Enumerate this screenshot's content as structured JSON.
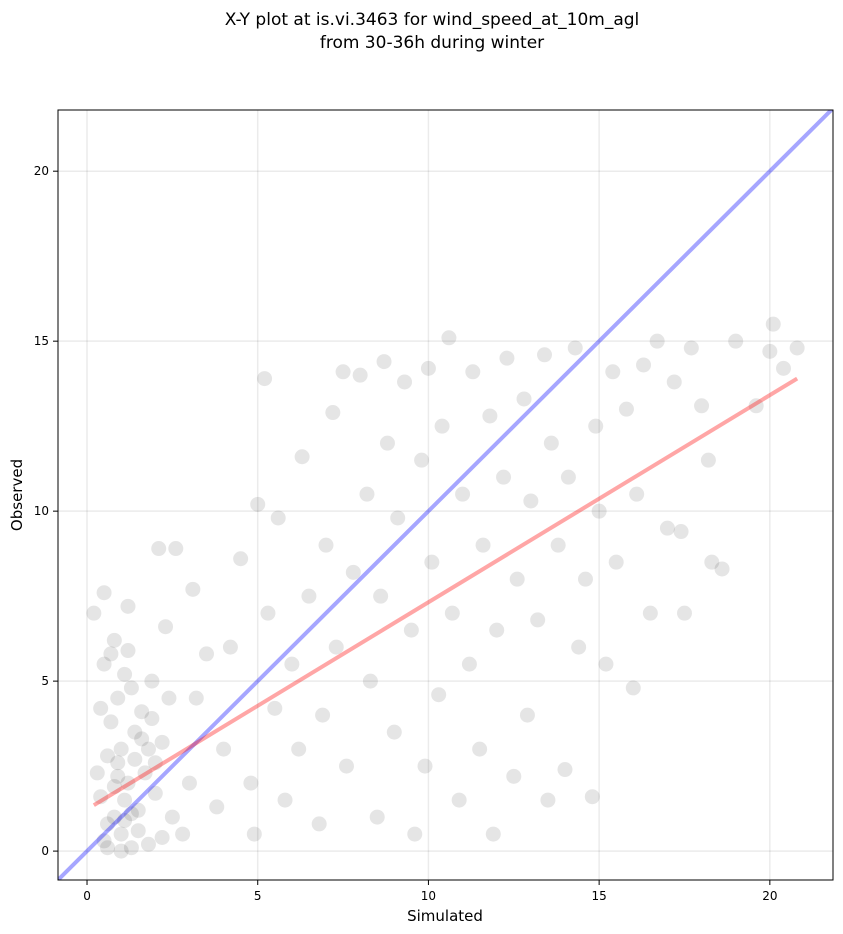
{
  "chart_data": {
    "type": "scatter",
    "title": [
      "X-Y plot at is.vi.3463 for wind_speed_at_10m_agl",
      "from 30-36h during winter"
    ],
    "xlabel": "Simulated",
    "ylabel": "Observed",
    "xlim": [
      -0.85,
      21.85
    ],
    "ylim": [
      -0.85,
      21.8
    ],
    "xticks": [
      0,
      5,
      10,
      15,
      20
    ],
    "yticks": [
      0,
      5,
      10,
      15,
      20
    ],
    "grid": true,
    "series": [
      {
        "type": "scatter",
        "color": "#000000",
        "opacity": 0.1,
        "x": [
          0.5,
          0.8,
          1.0,
          1.2,
          0.6,
          1.4,
          0.9,
          1.1,
          0.7,
          1.5,
          1.8,
          2.0,
          1.3,
          0.4,
          0.3,
          1.6,
          2.2,
          2.5,
          1.9,
          0.8,
          1.2,
          0.5,
          0.2,
          2.1,
          2.6,
          2.3,
          1.0,
          1.7,
          0.6,
          1.1,
          2.8,
          3.0,
          3.2,
          3.5,
          3.1,
          3.8,
          4.0,
          4.2,
          4.5,
          4.8,
          4.9,
          5.2,
          5.0,
          5.3,
          5.5,
          5.8,
          5.6,
          6.0,
          6.2,
          6.3,
          6.5,
          6.8,
          6.9,
          7.0,
          7.2,
          7.5,
          7.3,
          7.6,
          7.8,
          8.0,
          8.2,
          8.3,
          8.5,
          8.6,
          8.8,
          8.7,
          9.0,
          9.1,
          9.3,
          9.5,
          9.6,
          9.8,
          9.9,
          10.0,
          10.1,
          10.3,
          10.4,
          10.6,
          10.7,
          10.9,
          11.0,
          11.2,
          11.3,
          11.5,
          11.6,
          11.8,
          11.9,
          12.0,
          12.2,
          12.3,
          12.5,
          12.6,
          12.8,
          12.9,
          13.0,
          13.2,
          13.4,
          13.5,
          13.6,
          13.8,
          14.0,
          14.1,
          14.3,
          14.4,
          14.6,
          14.8,
          14.9,
          15.0,
          15.2,
          15.4,
          15.5,
          15.8,
          16.0,
          16.1,
          16.3,
          16.5,
          16.7,
          17.0,
          17.2,
          17.4,
          17.5,
          17.7,
          18.0,
          18.2,
          18.3,
          18.6,
          19.0,
          19.6,
          20.0,
          20.1,
          20.4,
          20.8,
          0.9,
          1.3,
          0.7,
          1.5,
          1.0,
          1.8,
          2.4,
          0.4,
          1.2,
          2.0,
          0.6,
          1.4,
          0.8,
          1.6,
          1.1,
          0.5,
          2.2,
          1.9,
          0.9,
          1.3
        ],
        "values": [
          0.3,
          1.0,
          0.5,
          2.0,
          2.8,
          3.5,
          4.5,
          5.2,
          5.8,
          1.2,
          0.2,
          2.6,
          0.1,
          1.6,
          2.3,
          4.1,
          3.2,
          1.0,
          5.0,
          6.2,
          7.2,
          7.6,
          7.0,
          8.9,
          8.9,
          6.6,
          3.0,
          2.3,
          0.8,
          1.5,
          0.5,
          2.0,
          4.5,
          5.8,
          7.7,
          1.3,
          3.0,
          6.0,
          8.6,
          2.0,
          0.5,
          13.9,
          10.2,
          7.0,
          4.2,
          1.5,
          9.8,
          5.5,
          3.0,
          11.6,
          7.5,
          0.8,
          4.0,
          9.0,
          12.9,
          14.1,
          6.0,
          2.5,
          8.2,
          14.0,
          10.5,
          5.0,
          1.0,
          7.5,
          12.0,
          14.4,
          3.5,
          9.8,
          13.8,
          6.5,
          0.5,
          11.5,
          2.5,
          14.2,
          8.5,
          4.6,
          12.5,
          15.1,
          7.0,
          1.5,
          10.5,
          5.5,
          14.1,
          3.0,
          9.0,
          12.8,
          0.5,
          6.5,
          11.0,
          14.5,
          2.2,
          8.0,
          13.3,
          4.0,
          10.3,
          6.8,
          14.6,
          1.5,
          12.0,
          9.0,
          2.4,
          11.0,
          14.8,
          6.0,
          8.0,
          1.6,
          12.5,
          10.0,
          5.5,
          14.1,
          8.5,
          13.0,
          4.8,
          10.5,
          14.3,
          7.0,
          15.0,
          9.5,
          13.8,
          9.4,
          7.0,
          14.8,
          13.1,
          11.5,
          8.5,
          8.3,
          15.0,
          13.1,
          14.7,
          15.5,
          14.2,
          14.8,
          2.2,
          4.8,
          3.8,
          0.6,
          0.0,
          3.0,
          4.5,
          4.2,
          5.9,
          1.7,
          0.1,
          2.7,
          1.9,
          3.3,
          0.9,
          5.5,
          0.4,
          3.9,
          2.6,
          1.1
        ]
      },
      {
        "type": "line",
        "color": "#0000ff",
        "opacity": 0.35,
        "x": [
          -0.85,
          21.85
        ],
        "values": [
          -0.85,
          21.85
        ]
      },
      {
        "type": "line",
        "color": "#ff0000",
        "opacity": 0.35,
        "x": [
          0.2,
          20.8
        ],
        "values": [
          1.35,
          13.9
        ]
      }
    ]
  }
}
